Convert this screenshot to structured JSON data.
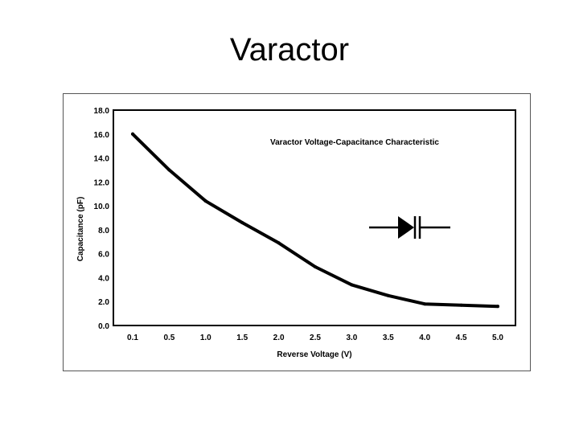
{
  "slide": {
    "title": "Varactor"
  },
  "chart_data": {
    "type": "line",
    "title": "Varactor Voltage-Capacitance Characteristic",
    "xlabel": "Reverse Voltage (V)",
    "ylabel": "Capacitance (pF)",
    "categories": [
      "0.1",
      "0.5",
      "1.0",
      "1.5",
      "2.0",
      "2.5",
      "3.0",
      "3.5",
      "4.0",
      "4.5",
      "5.0"
    ],
    "yticks": [
      "0.0",
      "2.0",
      "4.0",
      "6.0",
      "8.0",
      "10.0",
      "12.0",
      "14.0",
      "16.0",
      "18.0"
    ],
    "ylim": [
      0,
      18
    ],
    "series": [
      {
        "values": [
          16.0,
          13.0,
          10.4,
          8.6,
          6.9,
          4.9,
          3.4,
          2.5,
          1.8,
          1.7,
          1.6
        ]
      }
    ],
    "line_color": "#000000",
    "legend": "none",
    "grid": false,
    "symbol_icon": "varactor-diode-icon"
  }
}
